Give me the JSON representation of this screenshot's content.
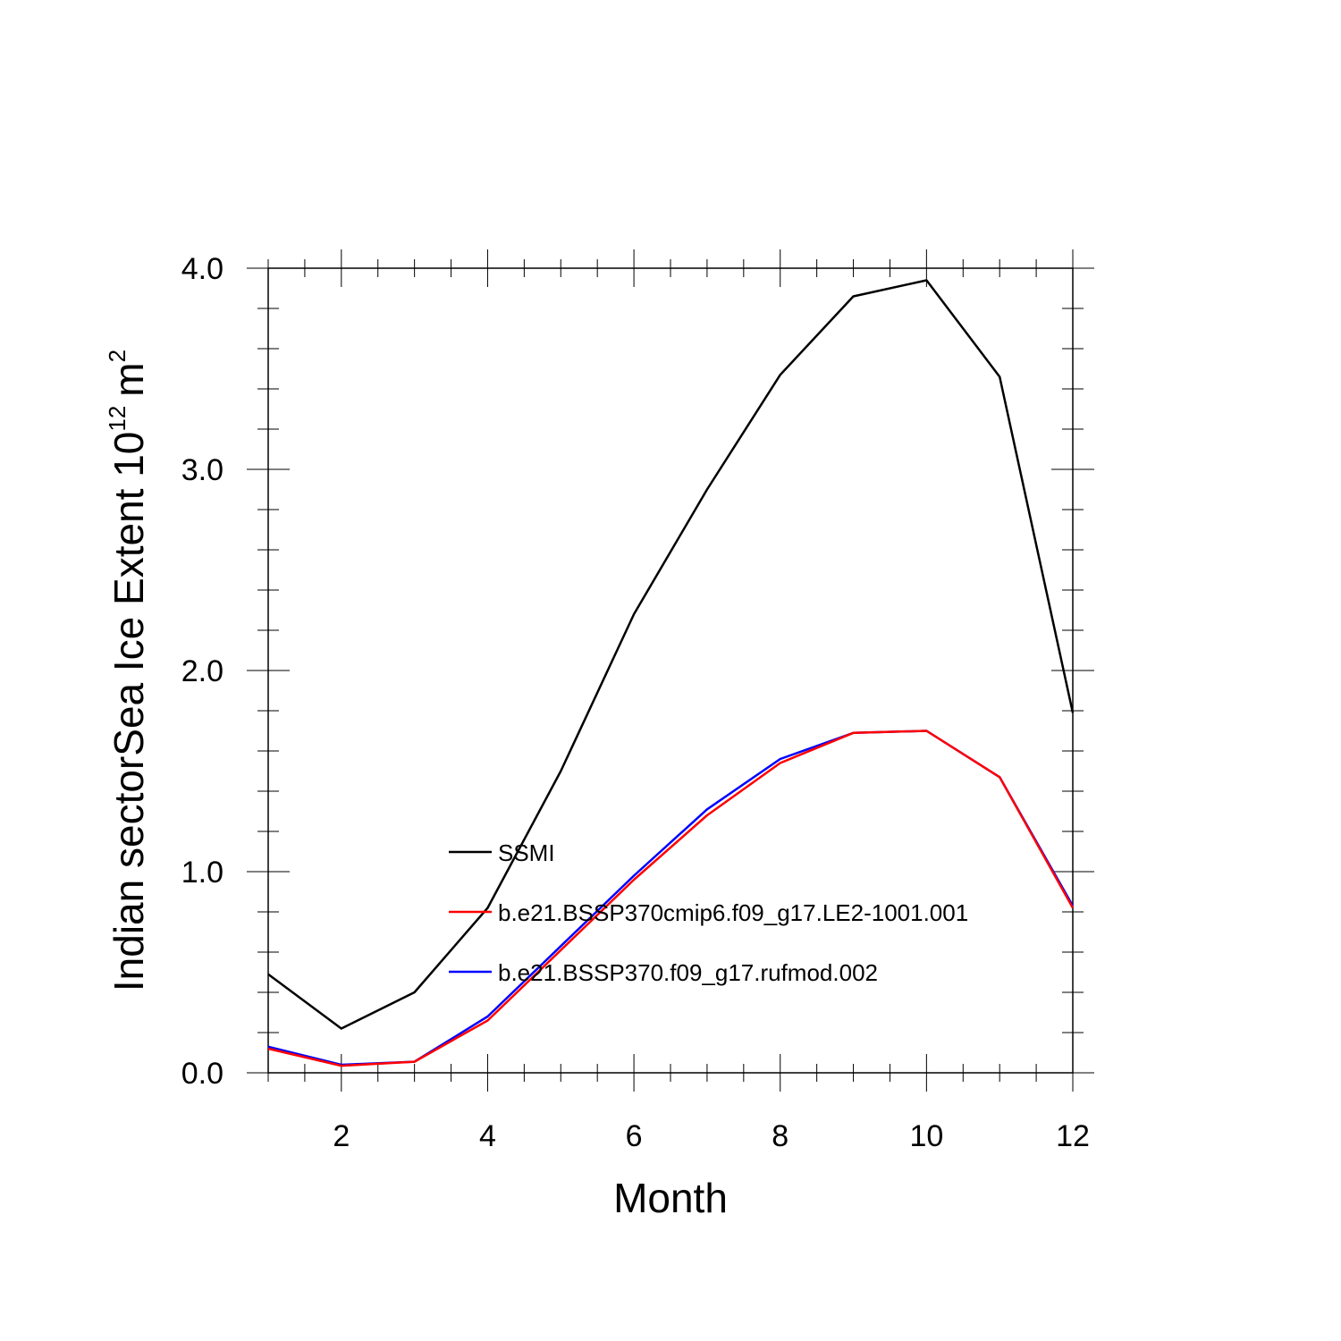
{
  "chart_data": {
    "type": "line",
    "title": "",
    "xlabel": "Month",
    "ylabel": "Indian sectorSea Ice Extent 10",
    "ylabel_superscript": "12",
    "ylabel_unit": "m",
    "ylabel_unit_superscript": "2",
    "xlim": [
      1,
      12
    ],
    "ylim": [
      0,
      4
    ],
    "x_ticks": [
      2,
      4,
      6,
      8,
      10,
      12
    ],
    "x_tick_labels": [
      "2",
      "4",
      "6",
      "8",
      "10",
      "12"
    ],
    "y_ticks": [
      0,
      1,
      2,
      3,
      4
    ],
    "y_tick_labels": [
      "0.0",
      "1.0",
      "2.0",
      "3.0",
      "4.0"
    ],
    "legend_position": "center",
    "x": [
      1,
      2,
      3,
      4,
      5,
      6,
      7,
      8,
      9,
      10,
      11,
      12
    ],
    "series": [
      {
        "name": "SSMI",
        "color": "#000000",
        "values": [
          0.49,
          0.22,
          0.4,
          0.82,
          1.5,
          2.28,
          2.9,
          3.47,
          3.86,
          3.94,
          3.46,
          1.79
        ]
      },
      {
        "name": "b.e21.BSSP370cmip6.f09_g17.LE2-1001.001",
        "color": "#ff0000",
        "values": [
          0.12,
          0.035,
          0.055,
          0.26,
          0.61,
          0.96,
          1.28,
          1.54,
          1.69,
          1.7,
          1.47,
          0.82
        ]
      },
      {
        "name": "b.e21.BSSP370.f09_g17.rufmod.002",
        "color": "#0000ff",
        "values": [
          0.13,
          0.04,
          0.055,
          0.28,
          0.63,
          0.98,
          1.31,
          1.56,
          1.69,
          1.7,
          1.47,
          0.83
        ]
      }
    ]
  }
}
